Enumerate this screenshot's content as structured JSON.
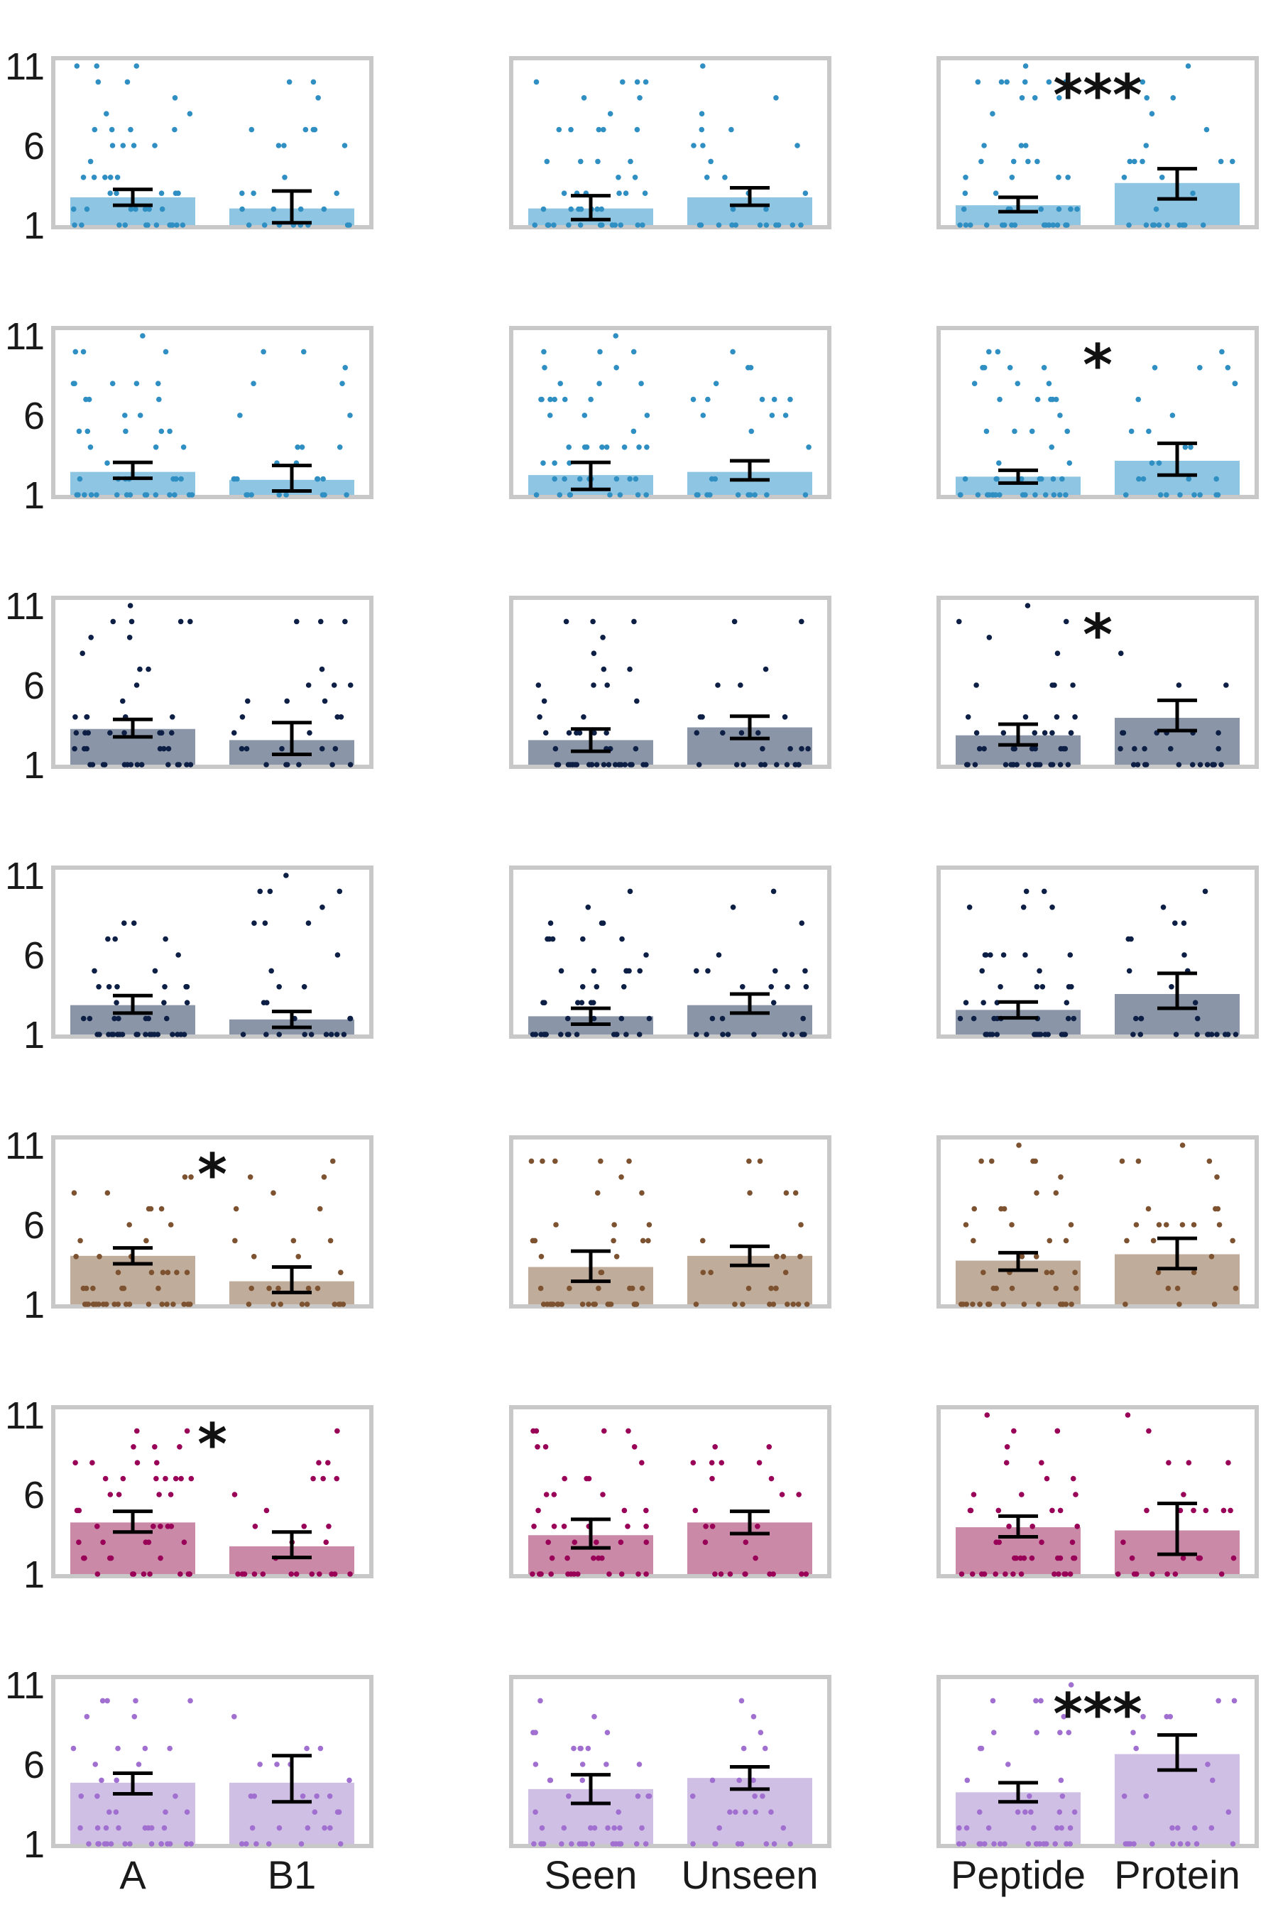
{
  "chart_data": {
    "type": "bar",
    "ylim": [
      1,
      11
    ],
    "yticks": [
      1,
      6,
      11
    ],
    "grid": false,
    "legend": "none",
    "rows": [
      {
        "color": "#2f8fc3",
        "bar_color": "#8ec5e2"
      },
      {
        "color": "#2f8fc3",
        "bar_color": "#8ec5e2"
      },
      {
        "color": "#0d1f45",
        "bar_color": "#8a96a8"
      },
      {
        "color": "#0d1f45",
        "bar_color": "#8a96a8"
      },
      {
        "color": "#7d5230",
        "bar_color": "#bfac9a"
      },
      {
        "color": "#990057",
        "bar_color": "#c989a7"
      },
      {
        "color": "#a06fd0",
        "bar_color": "#cfbfe4"
      }
    ],
    "columns": [
      {
        "categories": [
          "A",
          "B1"
        ]
      },
      {
        "categories": [
          "Seen",
          "Unseen"
        ]
      },
      {
        "categories": [
          "Peptide",
          "Protein"
        ]
      }
    ],
    "panels": [
      {
        "row": 0,
        "col": 0,
        "values": [
          2.7,
          2.0
        ],
        "err_low": [
          2.2,
          1.1
        ],
        "err_high": [
          3.2,
          3.1
        ],
        "significance": ""
      },
      {
        "row": 0,
        "col": 1,
        "values": [
          2.0,
          2.7
        ],
        "err_low": [
          1.3,
          2.2
        ],
        "err_high": [
          2.8,
          3.3
        ],
        "significance": ""
      },
      {
        "row": 0,
        "col": 2,
        "values": [
          2.2,
          3.6
        ],
        "err_low": [
          1.8,
          2.6
        ],
        "err_high": [
          2.7,
          4.5
        ],
        "significance": "***"
      },
      {
        "row": 1,
        "col": 0,
        "values": [
          2.4,
          1.9
        ],
        "err_low": [
          2.0,
          1.2
        ],
        "err_high": [
          3.0,
          2.8
        ],
        "significance": ""
      },
      {
        "row": 1,
        "col": 1,
        "values": [
          2.2,
          2.4
        ],
        "err_low": [
          1.3,
          1.9
        ],
        "err_high": [
          3.0,
          3.1
        ],
        "significance": ""
      },
      {
        "row": 1,
        "col": 2,
        "values": [
          2.1,
          3.1
        ],
        "err_low": [
          1.7,
          2.2
        ],
        "err_high": [
          2.5,
          4.2
        ],
        "significance": "*"
      },
      {
        "row": 2,
        "col": 0,
        "values": [
          3.2,
          2.5
        ],
        "err_low": [
          2.7,
          1.6
        ],
        "err_high": [
          3.8,
          3.6
        ],
        "significance": ""
      },
      {
        "row": 2,
        "col": 1,
        "values": [
          2.5,
          3.3
        ],
        "err_low": [
          1.8,
          2.6
        ],
        "err_high": [
          3.2,
          4.0
        ],
        "significance": ""
      },
      {
        "row": 2,
        "col": 2,
        "values": [
          2.8,
          3.9
        ],
        "err_low": [
          2.2,
          3.1
        ],
        "err_high": [
          3.5,
          5.0
        ],
        "significance": "*"
      },
      {
        "row": 3,
        "col": 0,
        "values": [
          2.8,
          1.9
        ],
        "err_low": [
          2.3,
          1.4
        ],
        "err_high": [
          3.4,
          2.4
        ],
        "significance": ""
      },
      {
        "row": 3,
        "col": 1,
        "values": [
          2.1,
          2.8
        ],
        "err_low": [
          1.6,
          2.3
        ],
        "err_high": [
          2.6,
          3.5
        ],
        "significance": ""
      },
      {
        "row": 3,
        "col": 2,
        "values": [
          2.5,
          3.5
        ],
        "err_low": [
          2.0,
          2.6
        ],
        "err_high": [
          3.0,
          4.8
        ],
        "significance": ""
      },
      {
        "row": 4,
        "col": 0,
        "values": [
          4.0,
          2.4
        ],
        "err_low": [
          3.5,
          1.7
        ],
        "err_high": [
          4.5,
          3.3
        ],
        "significance": "*"
      },
      {
        "row": 4,
        "col": 1,
        "values": [
          3.3,
          4.0
        ],
        "err_low": [
          2.4,
          3.4
        ],
        "err_high": [
          4.3,
          4.6
        ],
        "significance": ""
      },
      {
        "row": 4,
        "col": 2,
        "values": [
          3.7,
          4.1
        ],
        "err_low": [
          3.1,
          3.2
        ],
        "err_high": [
          4.2,
          5.1
        ],
        "significance": ""
      },
      {
        "row": 5,
        "col": 0,
        "values": [
          4.2,
          2.7
        ],
        "err_low": [
          3.6,
          2.0
        ],
        "err_high": [
          4.9,
          3.6
        ],
        "significance": "*"
      },
      {
        "row": 5,
        "col": 1,
        "values": [
          3.4,
          4.2
        ],
        "err_low": [
          2.6,
          3.5
        ],
        "err_high": [
          4.4,
          4.9
        ],
        "significance": ""
      },
      {
        "row": 5,
        "col": 2,
        "values": [
          3.9,
          3.7
        ],
        "err_low": [
          3.3,
          2.2
        ],
        "err_high": [
          4.6,
          5.4
        ],
        "significance": ""
      },
      {
        "row": 6,
        "col": 0,
        "values": [
          4.8,
          4.8
        ],
        "err_low": [
          4.1,
          3.6
        ],
        "err_high": [
          5.4,
          6.5
        ],
        "significance": ""
      },
      {
        "row": 6,
        "col": 1,
        "values": [
          4.4,
          5.1
        ],
        "err_low": [
          3.5,
          4.4
        ],
        "err_high": [
          5.3,
          5.8
        ],
        "significance": ""
      },
      {
        "row": 6,
        "col": 2,
        "values": [
          4.2,
          6.6
        ],
        "err_low": [
          3.6,
          5.6
        ],
        "err_high": [
          4.8,
          7.8
        ],
        "significance": "***"
      }
    ]
  }
}
